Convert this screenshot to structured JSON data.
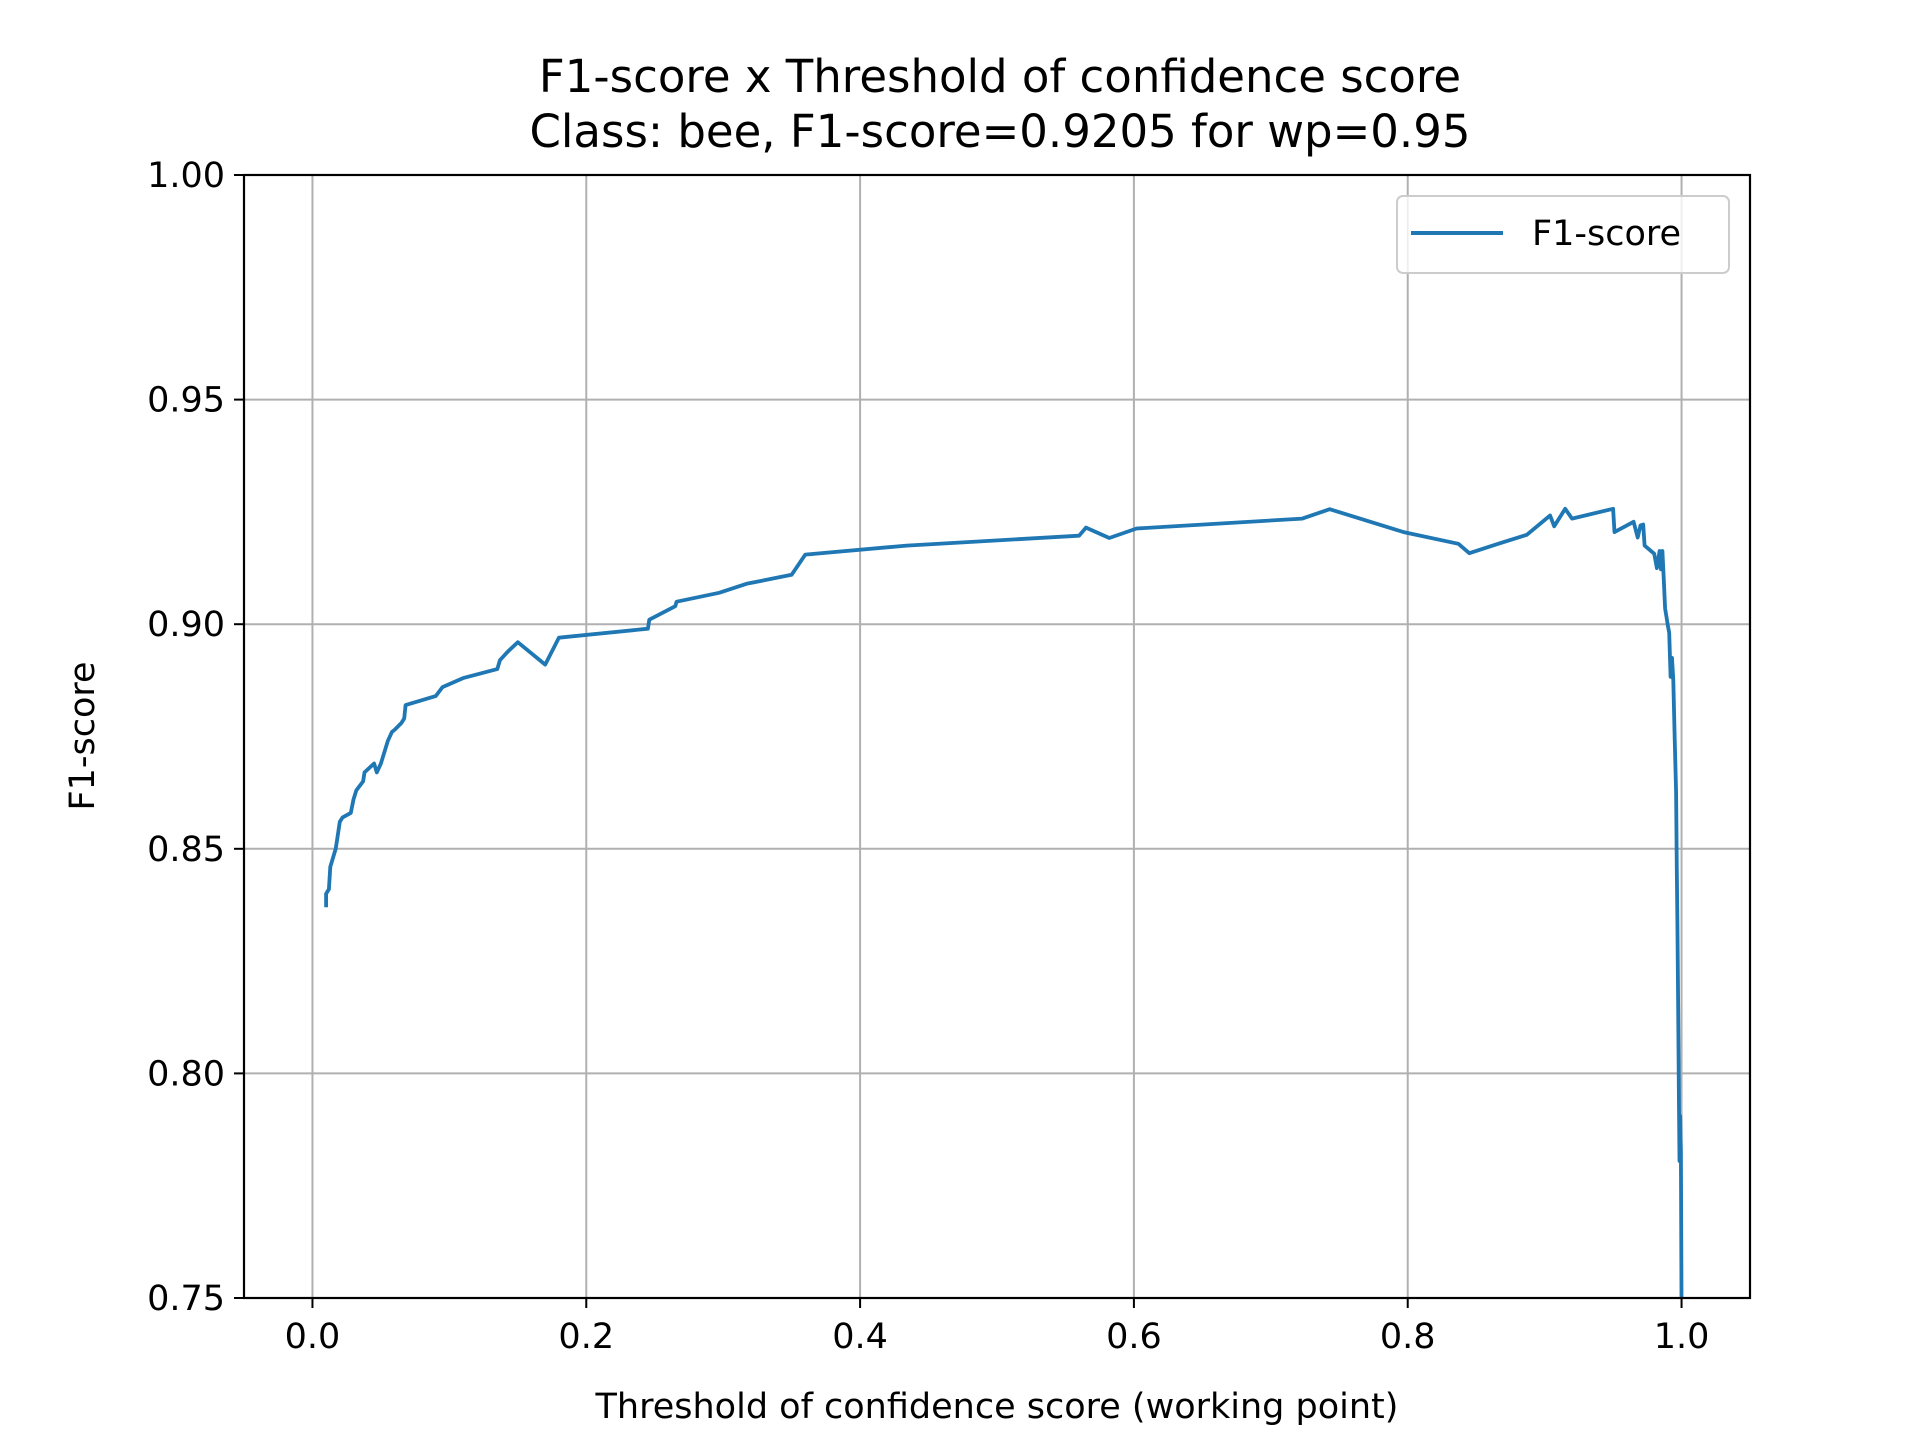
{
  "chart_data": {
    "type": "line",
    "title": "F1-score x Threshold of confidence score",
    "subtitle": "Class: bee, F1-score=0.9205 for wp=0.95",
    "xlabel": "Threshold of confidence score (working point)",
    "ylabel": "F1-score",
    "xlim": [
      -0.05,
      1.05
    ],
    "ylim": [
      0.75,
      1.0
    ],
    "xticks": [
      0.0,
      0.2,
      0.4,
      0.6,
      0.8,
      1.0
    ],
    "xtick_labels": [
      "0.0",
      "0.2",
      "0.4",
      "0.6",
      "0.8",
      "1.0"
    ],
    "yticks": [
      0.75,
      0.8,
      0.85,
      0.9,
      0.95,
      1.0
    ],
    "ytick_labels": [
      "0.75",
      "0.80",
      "0.85",
      "0.90",
      "0.95",
      "1.00"
    ],
    "grid": true,
    "legend_position": "top-right",
    "series": [
      {
        "name": "F1-score",
        "color": "#1f77b4",
        "x": [
          0.01,
          0.01,
          0.012,
          0.013,
          0.015,
          0.017,
          0.018,
          0.02,
          0.022,
          0.028,
          0.03,
          0.032,
          0.037,
          0.038,
          0.045,
          0.047,
          0.05,
          0.055,
          0.058,
          0.06,
          0.065,
          0.067,
          0.068,
          0.09,
          0.095,
          0.11,
          0.135,
          0.137,
          0.143,
          0.15,
          0.17,
          0.18,
          0.245,
          0.246,
          0.265,
          0.266,
          0.297,
          0.317,
          0.35,
          0.36,
          0.434,
          0.56,
          0.565,
          0.582,
          0.602,
          0.723,
          0.743,
          0.797,
          0.837,
          0.845,
          0.866,
          0.887,
          0.904,
          0.907,
          0.915,
          0.92,
          0.95,
          0.951,
          0.965,
          0.968,
          0.97,
          0.972,
          0.973,
          0.98,
          0.982,
          0.984,
          0.985,
          0.986,
          0.987,
          0.988,
          0.989,
          0.99,
          0.991,
          0.992,
          0.993,
          0.994,
          0.995,
          0.996,
          0.9965,
          0.997,
          0.9975,
          0.998,
          0.9985,
          0.999,
          0.9995,
          1.0
        ],
        "values": [
          0.837,
          0.84,
          0.841,
          0.846,
          0.848,
          0.85,
          0.852,
          0.856,
          0.857,
          0.858,
          0.861,
          0.863,
          0.865,
          0.867,
          0.869,
          0.867,
          0.869,
          0.874,
          0.876,
          0.8765,
          0.878,
          0.879,
          0.882,
          0.884,
          0.886,
          0.888,
          0.89,
          0.892,
          0.894,
          0.896,
          0.891,
          0.897,
          0.899,
          0.901,
          0.904,
          0.905,
          0.907,
          0.909,
          0.911,
          0.9155,
          0.9175,
          0.9197,
          0.9215,
          0.9192,
          0.9213,
          0.9235,
          0.9256,
          0.9205,
          0.9179,
          0.9158,
          0.9179,
          0.9199,
          0.9242,
          0.9218,
          0.9257,
          0.9235,
          0.9257,
          0.9205,
          0.9228,
          0.9193,
          0.922,
          0.9222,
          0.9175,
          0.9157,
          0.9125,
          0.9163,
          0.9122,
          0.9163,
          0.9103,
          0.9035,
          0.9016,
          0.8996,
          0.8981,
          0.8883,
          0.8925,
          0.8875,
          0.8745,
          0.8625,
          0.8455,
          0.8335,
          0.8165,
          0.7975,
          0.7805,
          0.7905,
          0.7825,
          0.75
        ]
      }
    ]
  }
}
